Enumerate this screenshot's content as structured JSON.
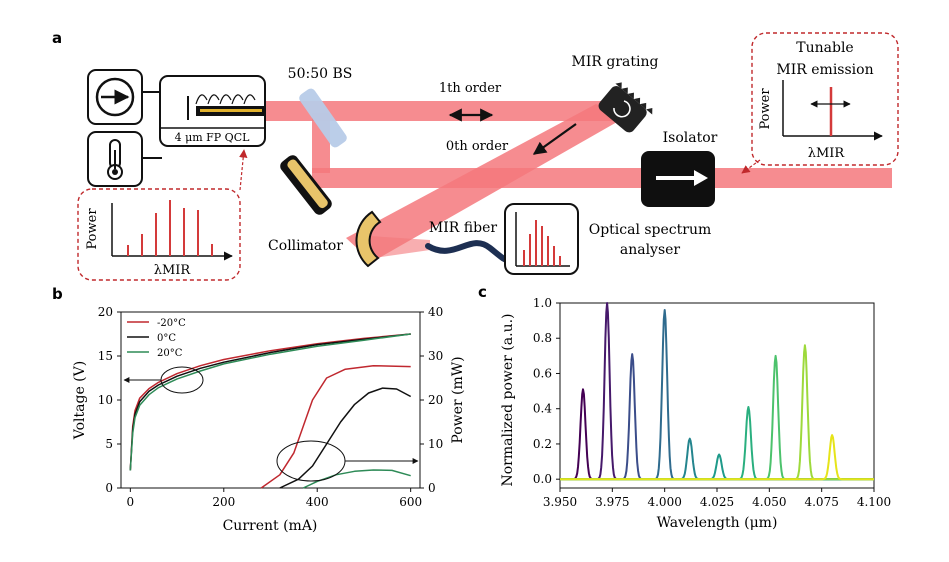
{
  "panel_a": {
    "label": "a",
    "qcl_label": "4 μm FP QCL",
    "bs_label": "50:50 BS",
    "first_order": "1th order",
    "zeroth_order": "0th order",
    "grating_label": "MIR grating",
    "isolator_label": "Isolator",
    "collimator_label": "Collimator",
    "fiber_label": "MIR fiber",
    "osa_label_1": "Optical spectrum",
    "osa_label_2": "analyser",
    "tunable_1": "Tunable",
    "tunable_2": "MIR emission",
    "power_label": "Power",
    "lambda_label": "λMIR",
    "colors": {
      "beam": "#f4787c",
      "spectral_line": "#d43a3a",
      "dashed_border": "#c0292c"
    }
  },
  "panel_b": {
    "label": "b",
    "xlabel": "Current (mA)",
    "ylabel_left": "Voltage (V)",
    "ylabel_right": "Power (mW)",
    "x_ticks": [
      "0",
      "200",
      "400",
      "600"
    ],
    "y_left_ticks": [
      "0",
      "5",
      "10",
      "15",
      "20"
    ],
    "y_right_ticks": [
      "0",
      "10",
      "20",
      "30",
      "40"
    ],
    "legend": [
      "-20°C",
      "0°C",
      "20°C"
    ]
  },
  "panel_c": {
    "label": "c",
    "xlabel": "Wavelength (μm)",
    "ylabel": "Normalized power (a.u.)",
    "x_ticks": [
      "3.950",
      "3.975",
      "4.000",
      "4.025",
      "4.050",
      "4.075",
      "4.100"
    ],
    "y_ticks": [
      "0.0",
      "0.2",
      "0.4",
      "0.6",
      "0.8",
      "1.0"
    ]
  },
  "chart_data": [
    {
      "type": "line",
      "xlabel": "Current (mA)",
      "ylabel": "Voltage (V)",
      "y2label": "Power (mW)",
      "xlim": [
        -20,
        620
      ],
      "ylim": [
        0,
        20
      ],
      "y2lim": [
        0,
        40
      ],
      "legend_position": "top-left",
      "series": [
        {
          "name": "-20°C",
          "color": "#c0282f",
          "axis": "left",
          "x": [
            0,
            5,
            10,
            20,
            40,
            60,
            100,
            150,
            200,
            300,
            400,
            500,
            600
          ],
          "y": [
            2,
            7,
            8.8,
            10.2,
            11.3,
            12,
            13,
            13.9,
            14.6,
            15.6,
            16.4,
            17,
            17.5
          ]
        },
        {
          "name": "0°C",
          "color": "#111111",
          "axis": "left",
          "x": [
            0,
            5,
            10,
            20,
            40,
            60,
            100,
            150,
            200,
            300,
            400,
            500,
            600
          ],
          "y": [
            2,
            6.6,
            8.4,
            9.8,
            11,
            11.7,
            12.7,
            13.6,
            14.3,
            15.4,
            16.3,
            16.9,
            17.5
          ]
        },
        {
          "name": "20°C",
          "color": "#2e8b57",
          "axis": "left",
          "x": [
            0,
            5,
            10,
            20,
            40,
            60,
            100,
            150,
            200,
            300,
            400,
            500,
            600
          ],
          "y": [
            2,
            6.2,
            8,
            9.4,
            10.6,
            11.4,
            12.4,
            13.3,
            14.1,
            15.2,
            16.1,
            16.8,
            17.5
          ]
        },
        {
          "name": "-20°C",
          "color": "#c0282f",
          "axis": "right",
          "x": [
            280,
            320,
            350,
            370,
            390,
            420,
            460,
            520,
            600
          ],
          "y": [
            0,
            3,
            8,
            14,
            20,
            25,
            27,
            27.8,
            27.6
          ]
        },
        {
          "name": "0°C",
          "color": "#111111",
          "axis": "right",
          "x": [
            320,
            360,
            390,
            420,
            450,
            480,
            510,
            540,
            570,
            600
          ],
          "y": [
            0,
            2,
            5,
            10,
            15,
            19,
            21.6,
            22.7,
            22.5,
            20.8
          ]
        },
        {
          "name": "20°C",
          "color": "#2e8b57",
          "axis": "right",
          "x": [
            370,
            400,
            440,
            480,
            520,
            560,
            600
          ],
          "y": [
            0,
            1.5,
            3,
            3.8,
            4.1,
            4,
            2.8
          ]
        }
      ]
    },
    {
      "type": "line",
      "xlabel": "Wavelength (μm)",
      "ylabel": "Normalized power (a.u.)",
      "xlim": [
        3.95,
        4.1
      ],
      "ylim": [
        -0.05,
        1.0
      ],
      "peaks": [
        {
          "x": 3.961,
          "y": 0.51,
          "color": "#440154"
        },
        {
          "x": 3.9725,
          "y": 1.0,
          "color": "#46196b"
        },
        {
          "x": 3.9845,
          "y": 0.71,
          "color": "#3b4d8a"
        },
        {
          "x": 4.0,
          "y": 0.96,
          "color": "#2f6b8e"
        },
        {
          "x": 4.012,
          "y": 0.23,
          "color": "#24858e"
        },
        {
          "x": 4.026,
          "y": 0.14,
          "color": "#1f9a8a"
        },
        {
          "x": 4.04,
          "y": 0.41,
          "color": "#2aaf7f"
        },
        {
          "x": 4.053,
          "y": 0.7,
          "color": "#4cc26c"
        },
        {
          "x": 4.067,
          "y": 0.76,
          "color": "#9dd93b"
        },
        {
          "x": 4.08,
          "y": 0.25,
          "color": "#e6e419"
        }
      ]
    }
  ]
}
